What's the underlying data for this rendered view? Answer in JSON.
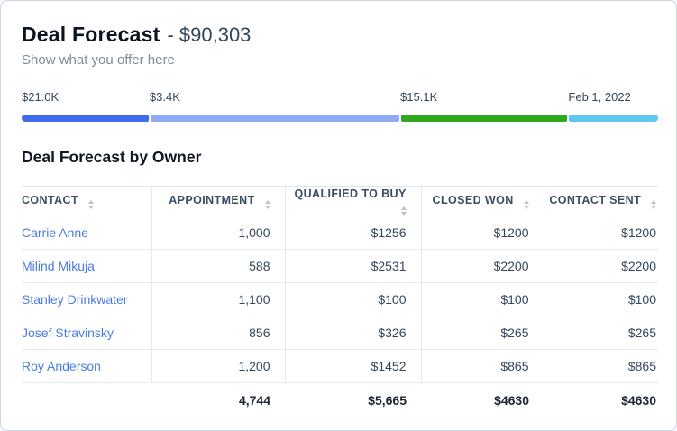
{
  "header": {
    "title": "Deal Forecast",
    "title_suffix": "- $90,303",
    "subtitle": "Show what you offer here"
  },
  "progress": {
    "segments": [
      {
        "label": "$21.0K",
        "color": "#3e6df0",
        "width_pct": 20.1
      },
      {
        "label": "$3.4K",
        "color": "#8fabf2",
        "width_pct": 39.4
      },
      {
        "label": "$15.1K",
        "color": "#2fa81c",
        "width_pct": 26.4
      },
      {
        "label": "Feb 1, 2022",
        "color": "#5fc5f1",
        "width_pct": 14.1
      }
    ]
  },
  "table": {
    "title": "Deal Forecast by Owner",
    "columns": [
      "Contact",
      "Appointment",
      "Qualified to Buy",
      "Closed Won",
      "Contact Sent"
    ],
    "rows": [
      {
        "contact": "Carrie Anne",
        "appointment": "1,000",
        "qualified_to_buy": "$1256",
        "closed_won": "$1200",
        "contact_sent": "$1200"
      },
      {
        "contact": "Milind Mikuja",
        "appointment": "588",
        "qualified_to_buy": "$2531",
        "closed_won": "$2200",
        "contact_sent": "$2200"
      },
      {
        "contact": "Stanley Drinkwater",
        "appointment": "1,100",
        "qualified_to_buy": "$100",
        "closed_won": "$100",
        "contact_sent": "$100"
      },
      {
        "contact": "Josef Stravinsky",
        "appointment": "856",
        "qualified_to_buy": "$326",
        "closed_won": "$265",
        "contact_sent": "$265"
      },
      {
        "contact": "Roy Anderson",
        "appointment": "1,200",
        "qualified_to_buy": "$1452",
        "closed_won": "$865",
        "contact_sent": "$865"
      }
    ],
    "totals": {
      "appointment": "4,744",
      "qualified_to_buy": "$5,665",
      "closed_won": "$4630",
      "contact_sent": "$4630"
    }
  }
}
